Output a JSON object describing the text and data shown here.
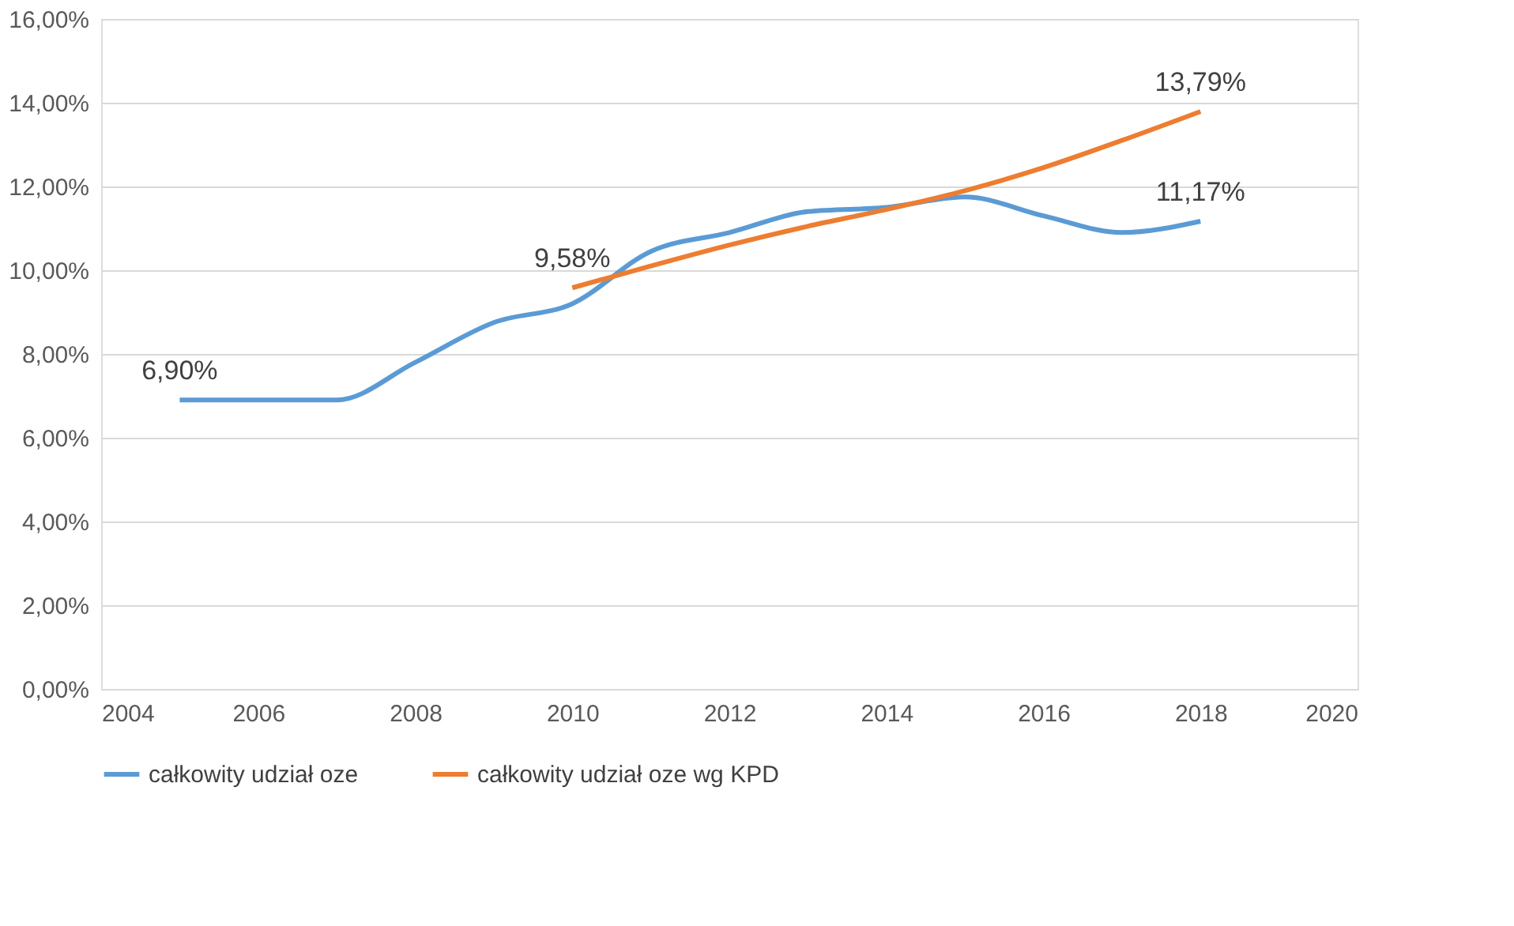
{
  "chart_data": {
    "type": "line",
    "x": [
      2005,
      2006,
      2007,
      2008,
      2009,
      2010,
      2011,
      2012,
      2013,
      2014,
      2015,
      2016,
      2017,
      2018
    ],
    "series": [
      {
        "name": "całkowity udział oze",
        "color": "#5b9bd5",
        "values": [
          6.9,
          6.9,
          6.9,
          7.8,
          8.75,
          9.2,
          10.45,
          10.9,
          11.4,
          11.5,
          11.75,
          11.3,
          10.9,
          11.17
        ],
        "value_labels": [
          "6,90%",
          null,
          null,
          null,
          null,
          null,
          null,
          null,
          null,
          null,
          null,
          null,
          null,
          "11,17%"
        ]
      },
      {
        "name": "całkowity udział oze wg KPD",
        "color": "#ed7d31",
        "values": [
          null,
          null,
          null,
          null,
          null,
          9.58,
          10.1,
          10.6,
          11.05,
          11.45,
          11.9,
          12.45,
          13.1,
          13.79
        ],
        "value_labels": [
          null,
          null,
          null,
          null,
          null,
          "9,58%",
          null,
          null,
          null,
          null,
          null,
          null,
          null,
          "13,79%"
        ]
      }
    ],
    "xlim": [
      2004,
      2020
    ],
    "xticks": [
      2004,
      2006,
      2008,
      2010,
      2012,
      2014,
      2016,
      2018,
      2020
    ],
    "ylim": [
      0,
      16
    ],
    "yticks": [
      {
        "value": 0,
        "label": "0,00%"
      },
      {
        "value": 2,
        "label": "2,00%"
      },
      {
        "value": 4,
        "label": "4,00%"
      },
      {
        "value": 6,
        "label": "6,00%"
      },
      {
        "value": 8,
        "label": "8,00%"
      },
      {
        "value": 10,
        "label": "10,00%"
      },
      {
        "value": 12,
        "label": "12,00%"
      },
      {
        "value": 14,
        "label": "14,00%"
      },
      {
        "value": 16,
        "label": "16,00%"
      }
    ],
    "grid": "y",
    "legend": "bottom",
    "marker": "none",
    "line_style": "solid"
  }
}
